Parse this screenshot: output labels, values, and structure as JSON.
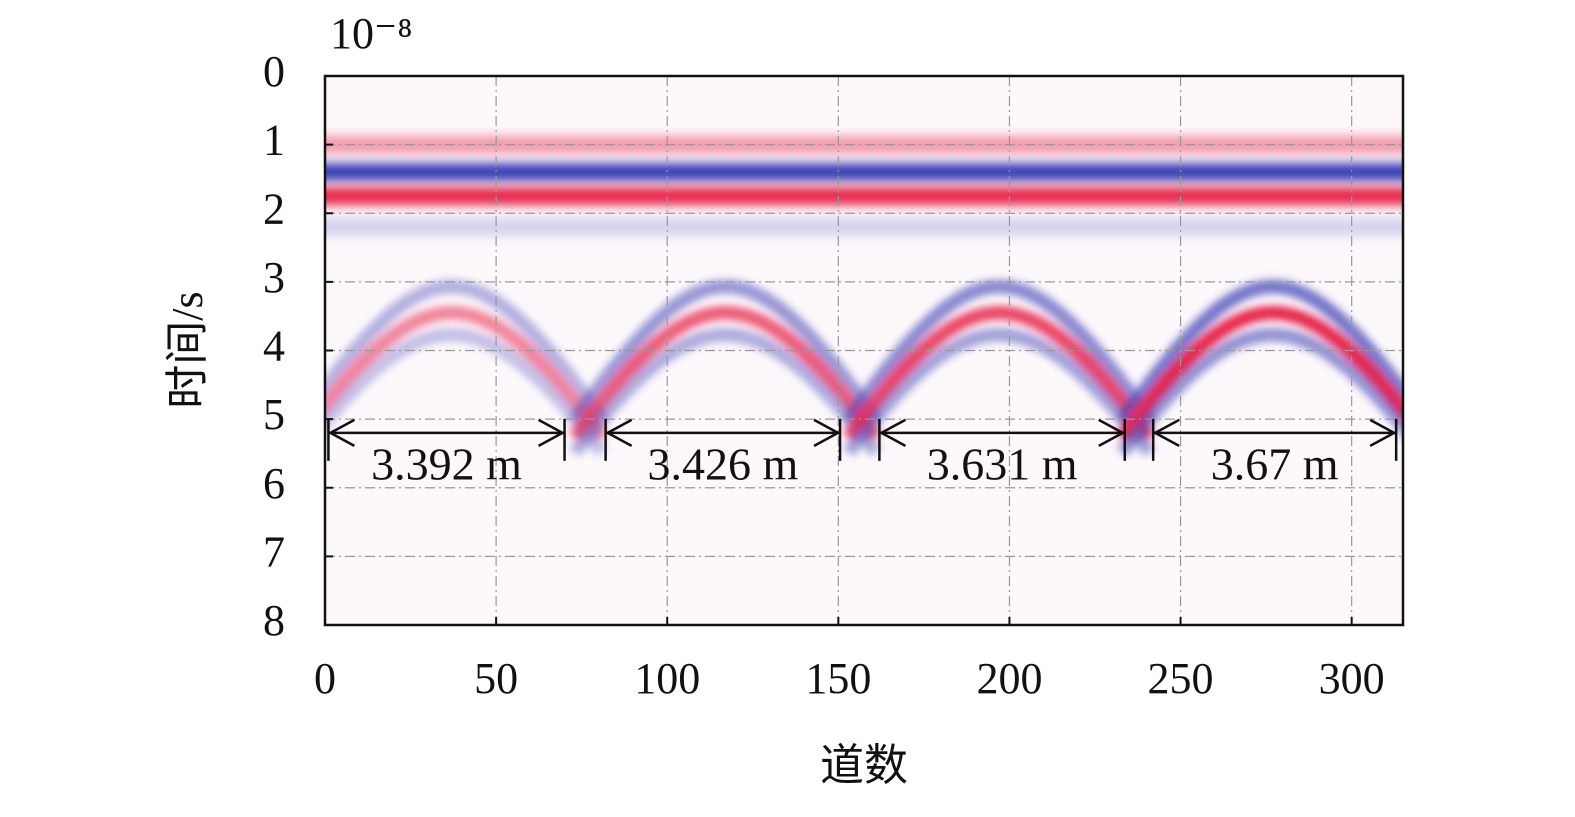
{
  "chart_data": {
    "type": "radargram",
    "x_label": "道数",
    "y_label": "时间/s",
    "y_exponent": "10⁻⁸",
    "xlim": [
      0,
      315
    ],
    "xticks": [
      0,
      50,
      100,
      150,
      200,
      250,
      300
    ],
    "ylim": [
      0,
      8
    ],
    "yticks": [
      0,
      1,
      2,
      3,
      4,
      5,
      6,
      7,
      8
    ],
    "y_inverted": true,
    "grid": true,
    "positive_color": "#e8264b",
    "negative_color": "#3a3fb5",
    "direct_wave": [
      {
        "t": 1.0,
        "polarity": 1,
        "strength": 0.45
      },
      {
        "t": 1.4,
        "polarity": -1,
        "strength": 1
      },
      {
        "t": 1.75,
        "polarity": 1,
        "strength": 1
      },
      {
        "t": 2.2,
        "polarity": -1,
        "strength": 0.2
      }
    ],
    "reflections": [
      {
        "x": 37,
        "t": 3.45,
        "strength": 0.55
      },
      {
        "x": 117,
        "t": 3.45,
        "strength": 0.75
      },
      {
        "x": 197,
        "t": 3.45,
        "strength": 0.85
      },
      {
        "x": 277,
        "t": 3.45,
        "strength": 1
      }
    ],
    "annotations": [
      {
        "text": "3.392 m",
        "x": [
          1,
          70
        ],
        "t": 5.2
      },
      {
        "text": "3.426 m",
        "x": [
          82,
          150.5
        ],
        "t": 5.2
      },
      {
        "text": "3.631 m",
        "x": [
          162,
          233.7
        ],
        "t": 5.2
      },
      {
        "text": "3.67 m",
        "x": [
          242,
          313
        ],
        "t": 5.2
      }
    ]
  }
}
